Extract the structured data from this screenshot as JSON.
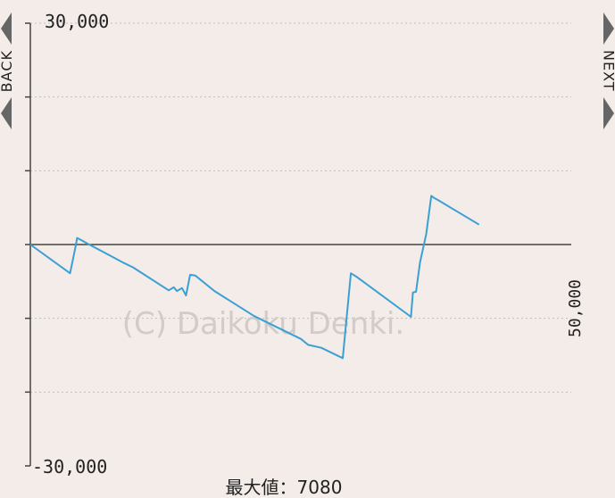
{
  "nav": {
    "back_label": "BACK",
    "next_label": "NEXT"
  },
  "watermark": "(C) Daikoku Denki.",
  "max_label": "最大値：7080",
  "chart_data": {
    "type": "line",
    "y_tick_labels": [
      "30,000",
      "-30,000"
    ],
    "x_end_label": "50,000",
    "ylim": [
      -30000,
      30000
    ],
    "xlim": [
      0,
      50000
    ],
    "y_gridlines": [
      20000,
      10000,
      -10000,
      -20000
    ],
    "grid": true,
    "series": [
      {
        "color": "#3aa0d4",
        "x": [
          0,
          3900,
          4500,
          4600,
          5000,
          5500,
          9200,
          10100,
          13600,
          14100,
          14400,
          14900,
          15300,
          15700,
          16200,
          18100,
          22000,
          26600,
          27300,
          28600,
          30700,
          31500,
          32100,
          37400,
          37600,
          37900,
          38300,
          38900,
          39400,
          39700,
          40100,
          44100
        ],
        "y": [
          0,
          -3900,
          100,
          900,
          600,
          200,
          -2500,
          -3100,
          -6200,
          -5800,
          -6300,
          -5900,
          -6900,
          -4100,
          -4200,
          -6300,
          -9700,
          -12800,
          -13600,
          -14000,
          -15400,
          -3900,
          -4400,
          -9800,
          -6500,
          -6400,
          -2400,
          1400,
          6600,
          6300,
          6000,
          2700
        ]
      }
    ]
  },
  "colors": {
    "background": "#f4ece8",
    "line": "#3aa0d4",
    "axis": "#444444",
    "grid": "#bfbfbf",
    "watermark": "#d3cbc7"
  }
}
